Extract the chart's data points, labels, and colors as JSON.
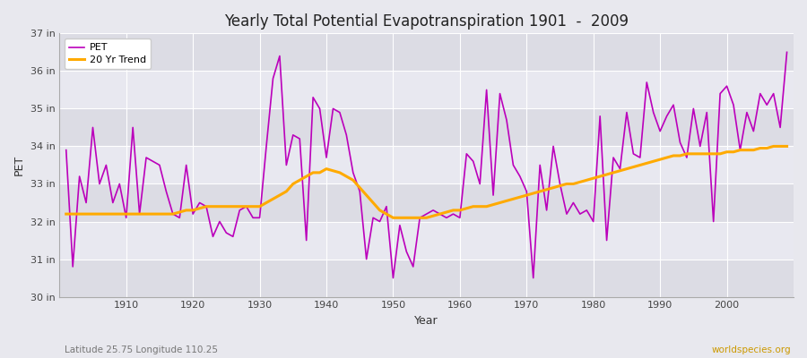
{
  "title": "Yearly Total Potential Evapotranspiration 1901  -  2009",
  "xlabel": "Year",
  "ylabel": "PET",
  "subtitle_left": "Latitude 25.75 Longitude 110.25",
  "subtitle_right": "worldspecies.org",
  "pet_color": "#bb00bb",
  "trend_color": "#ffaa00",
  "background_color": "#e8e8ee",
  "band_color_light": "#dcdce6",
  "band_color_dark": "#e8e8f0",
  "grid_color": "#ffffff",
  "ylim": [
    30,
    37
  ],
  "ytick_labels": [
    "30 in",
    "31 in",
    "32 in",
    "33 in",
    "34 in",
    "35 in",
    "36 in",
    "37 in"
  ],
  "ytick_values": [
    30,
    31,
    32,
    33,
    34,
    35,
    36,
    37
  ],
  "xlim_left": 1900,
  "xlim_right": 2010,
  "xticks": [
    1910,
    1920,
    1930,
    1940,
    1950,
    1960,
    1970,
    1980,
    1990,
    2000
  ],
  "years": [
    1901,
    1902,
    1903,
    1904,
    1905,
    1906,
    1907,
    1908,
    1909,
    1910,
    1911,
    1912,
    1913,
    1914,
    1915,
    1916,
    1917,
    1918,
    1919,
    1920,
    1921,
    1922,
    1923,
    1924,
    1925,
    1926,
    1927,
    1928,
    1929,
    1930,
    1931,
    1932,
    1933,
    1934,
    1935,
    1936,
    1937,
    1938,
    1939,
    1940,
    1941,
    1942,
    1943,
    1944,
    1945,
    1946,
    1947,
    1948,
    1949,
    1950,
    1951,
    1952,
    1953,
    1954,
    1955,
    1956,
    1957,
    1958,
    1959,
    1960,
    1961,
    1962,
    1963,
    1964,
    1965,
    1966,
    1967,
    1968,
    1969,
    1970,
    1971,
    1972,
    1973,
    1974,
    1975,
    1976,
    1977,
    1978,
    1979,
    1980,
    1981,
    1982,
    1983,
    1984,
    1985,
    1986,
    1987,
    1988,
    1989,
    1990,
    1991,
    1992,
    1993,
    1994,
    1995,
    1996,
    1997,
    1998,
    1999,
    2000,
    2001,
    2002,
    2003,
    2004,
    2005,
    2006,
    2007,
    2008,
    2009
  ],
  "pet_values": [
    33.9,
    30.8,
    33.2,
    32.5,
    34.5,
    33.0,
    33.5,
    32.5,
    33.0,
    32.1,
    34.5,
    32.2,
    33.7,
    33.6,
    33.5,
    32.8,
    32.2,
    32.1,
    33.5,
    32.2,
    32.5,
    32.4,
    31.6,
    32.0,
    31.7,
    31.6,
    32.3,
    32.4,
    32.1,
    32.1,
    34.0,
    35.8,
    36.4,
    33.5,
    34.3,
    34.2,
    31.5,
    35.3,
    35.0,
    33.7,
    35.0,
    34.9,
    34.3,
    33.3,
    32.8,
    31.0,
    32.1,
    32.0,
    32.4,
    30.5,
    31.9,
    31.2,
    30.8,
    32.1,
    32.2,
    32.3,
    32.2,
    32.1,
    32.2,
    32.1,
    33.8,
    33.6,
    33.0,
    35.5,
    32.7,
    35.4,
    34.7,
    33.5,
    33.2,
    32.8,
    30.5,
    33.5,
    32.3,
    34.0,
    33.0,
    32.2,
    32.5,
    32.2,
    32.3,
    32.0,
    34.8,
    31.5,
    33.7,
    33.4,
    34.9,
    33.8,
    33.7,
    35.7,
    34.9,
    34.4,
    34.8,
    35.1,
    34.1,
    33.7,
    35.0,
    34.0,
    34.9,
    32.0,
    35.4,
    35.6,
    35.1,
    33.9,
    34.9,
    34.4,
    35.4,
    35.1,
    35.4,
    34.5,
    36.5
  ],
  "trend_values": [
    32.2,
    32.2,
    32.2,
    32.2,
    32.2,
    32.2,
    32.2,
    32.2,
    32.2,
    32.2,
    32.2,
    32.2,
    32.2,
    32.2,
    32.2,
    32.2,
    32.2,
    32.25,
    32.3,
    32.3,
    32.35,
    32.4,
    32.4,
    32.4,
    32.4,
    32.4,
    32.4,
    32.4,
    32.4,
    32.4,
    32.5,
    32.6,
    32.7,
    32.8,
    33.0,
    33.1,
    33.2,
    33.3,
    33.3,
    33.4,
    33.35,
    33.3,
    33.2,
    33.1,
    32.9,
    32.7,
    32.5,
    32.3,
    32.2,
    32.1,
    32.1,
    32.1,
    32.1,
    32.1,
    32.1,
    32.15,
    32.2,
    32.25,
    32.3,
    32.3,
    32.35,
    32.4,
    32.4,
    32.4,
    32.45,
    32.5,
    32.55,
    32.6,
    32.65,
    32.7,
    32.75,
    32.8,
    32.85,
    32.9,
    32.95,
    33.0,
    33.0,
    33.05,
    33.1,
    33.15,
    33.2,
    33.25,
    33.3,
    33.35,
    33.4,
    33.45,
    33.5,
    33.55,
    33.6,
    33.65,
    33.7,
    33.75,
    33.75,
    33.8,
    33.8,
    33.8,
    33.8,
    33.8,
    33.8,
    33.85,
    33.85,
    33.9,
    33.9,
    33.9,
    33.95,
    33.95,
    34.0,
    34.0,
    34.0
  ]
}
